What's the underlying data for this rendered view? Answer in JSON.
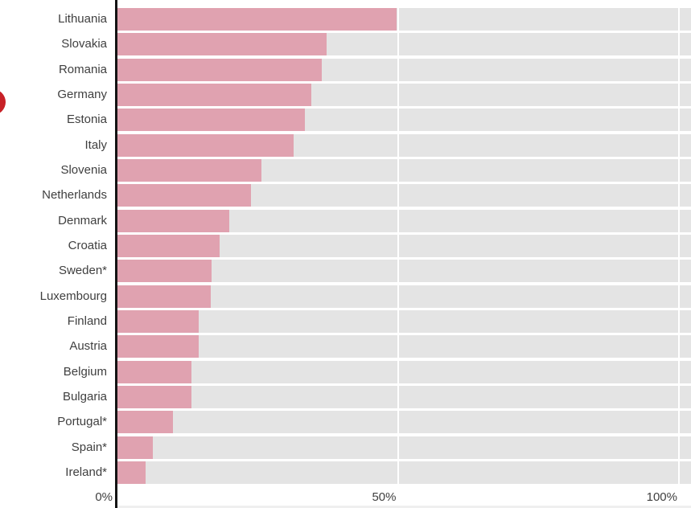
{
  "chart_data": {
    "type": "bar",
    "orientation": "horizontal",
    "title": "",
    "xlabel": "",
    "ylabel": "",
    "xlim": [
      0,
      102
    ],
    "x_ticks": [
      {
        "label": "0%",
        "value": 0
      },
      {
        "label": "50%",
        "value": 50
      },
      {
        "label": "100%",
        "value": 100
      }
    ],
    "unit": "percent",
    "categories": [
      "Lithuania",
      "Slovakia",
      "Romania",
      "Germany",
      "Estonia",
      "Italy",
      "Slovenia",
      "Netherlands",
      "Denmark",
      "Croatia",
      "Sweden*",
      "Luxembourg",
      "Finland",
      "Austria",
      "Belgium",
      "Bulgaria",
      "Portugal*",
      "Spain*",
      "Ireland*"
    ],
    "values": [
      49.6,
      37.2,
      36.4,
      34.5,
      33.3,
      31.3,
      25.6,
      23.8,
      19.9,
      18.1,
      16.8,
      16.6,
      14.4,
      14.4,
      13.1,
      13.1,
      9.8,
      6.3,
      5.0
    ],
    "grid": "white vertical gridlines at 50% and 100% over full-width track bars",
    "legend": null
  },
  "colors": {
    "bar_fill": "#e0a2b0",
    "bar_track": "#e4e4e4",
    "axis_line": "#141414",
    "label_text": "#3f3f3f",
    "red_dot": "#c82127",
    "background": "#ffffff",
    "bottom_strip": "#efefef"
  },
  "decorations": {
    "red_dot": "red circle clipped by the left edge, beside the Germany row"
  }
}
